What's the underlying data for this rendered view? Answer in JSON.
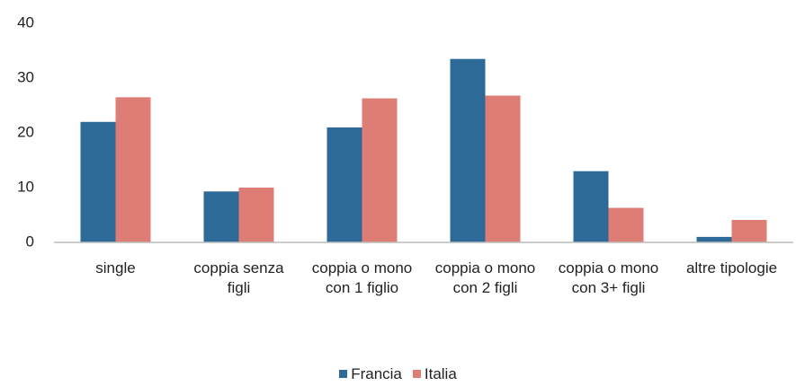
{
  "chart_data": {
    "type": "bar",
    "categories": [
      "single",
      "coppia senza figli",
      "coppia o mono con 1 figlio",
      "coppia o mono con 2 figli",
      "coppia o mono con 3+ figli",
      "altre tipologie"
    ],
    "series": [
      {
        "name": "Francia",
        "color": "#2e6a98",
        "values": [
          22,
          9.3,
          21,
          33.5,
          13,
          1
        ]
      },
      {
        "name": "Italia",
        "color": "#de7c76",
        "values": [
          26.5,
          10,
          26.3,
          26.8,
          6.3,
          4.1
        ]
      }
    ],
    "ylim": [
      0,
      40
    ],
    "yticks": [
      0,
      10,
      20,
      30,
      40
    ],
    "grid": false
  }
}
